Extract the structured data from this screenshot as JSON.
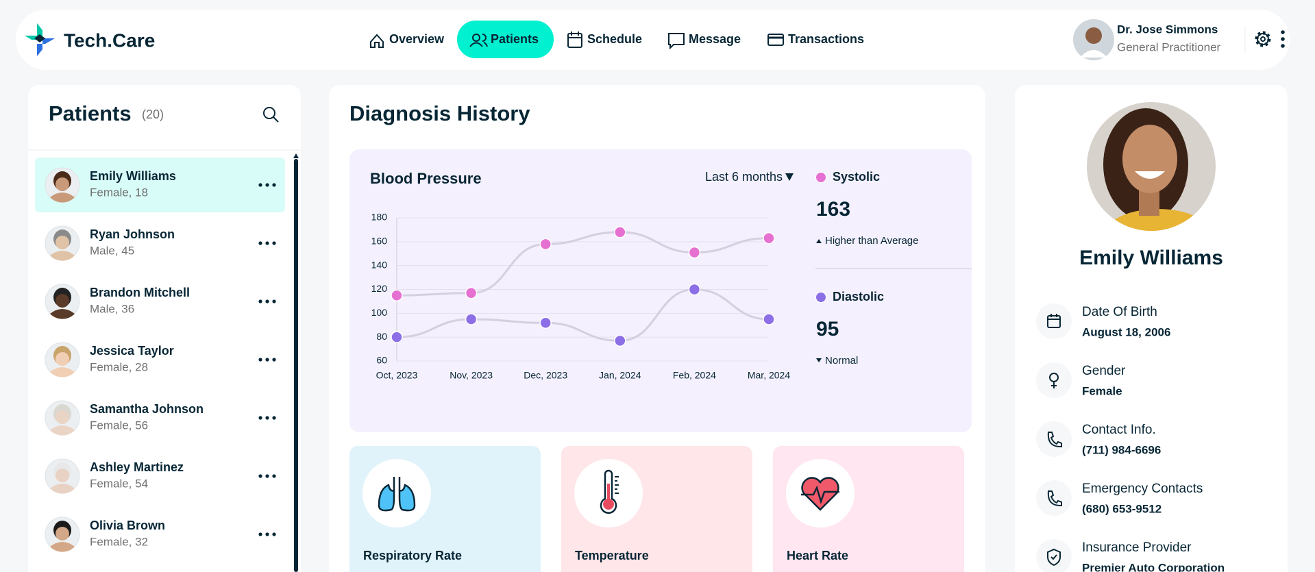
{
  "header": {
    "logo": "Tech.Care",
    "nav": [
      "Overview",
      "Patients",
      "Schedule",
      "Message",
      "Transactions"
    ],
    "doctor": {
      "name": "Dr. Jose Simmons",
      "role": "General Practitioner"
    }
  },
  "patients": {
    "title": "Patients",
    "count": "(20)",
    "list": [
      {
        "name": "Emily Williams",
        "info": "Female, 18"
      },
      {
        "name": "Ryan Johnson",
        "info": "Male, 45"
      },
      {
        "name": "Brandon Mitchell",
        "info": "Male, 36"
      },
      {
        "name": "Jessica Taylor",
        "info": "Female, 28"
      },
      {
        "name": "Samantha Johnson",
        "info": "Female, 56"
      },
      {
        "name": "Ashley Martinez",
        "info": "Female, 54"
      },
      {
        "name": "Olivia Brown",
        "info": "Female, 32"
      }
    ]
  },
  "diagnosis": {
    "title": "Diagnosis History",
    "chart_data": {
      "type": "line",
      "title": "Blood Pressure",
      "filter": "Last 6 months",
      "categories": [
        "Oct, 2023",
        "Nov, 2023",
        "Dec, 2023",
        "Jan, 2024",
        "Feb, 2024",
        "Mar, 2024"
      ],
      "series": [
        {
          "name": "Systolic",
          "color": "#e66fd2",
          "values": [
            115,
            117,
            158,
            168,
            151,
            163
          ],
          "latest": 163,
          "status": "Higher than Average"
        },
        {
          "name": "Diastolic",
          "color": "#8c6fe6",
          "values": [
            80,
            95,
            92,
            77,
            120,
            95
          ],
          "latest": 95,
          "status": "Normal"
        }
      ],
      "ylim": [
        60,
        180
      ],
      "yticks": [
        60,
        80,
        100,
        120,
        140,
        160,
        180
      ],
      "grid": true
    },
    "vitals": [
      "Respiratory Rate",
      "Temperature",
      "Heart Rate"
    ]
  },
  "profile": {
    "name": "Emily Williams",
    "fields": [
      {
        "label": "Date Of Birth",
        "value": "August 18, 2006"
      },
      {
        "label": "Gender",
        "value": "Female"
      },
      {
        "label": "Contact Info.",
        "value": "(711) 984-6696"
      },
      {
        "label": "Emergency Contacts",
        "value": "(680) 653-9512"
      },
      {
        "label": "Insurance Provider",
        "value": "Premier Auto Corporation"
      }
    ]
  }
}
